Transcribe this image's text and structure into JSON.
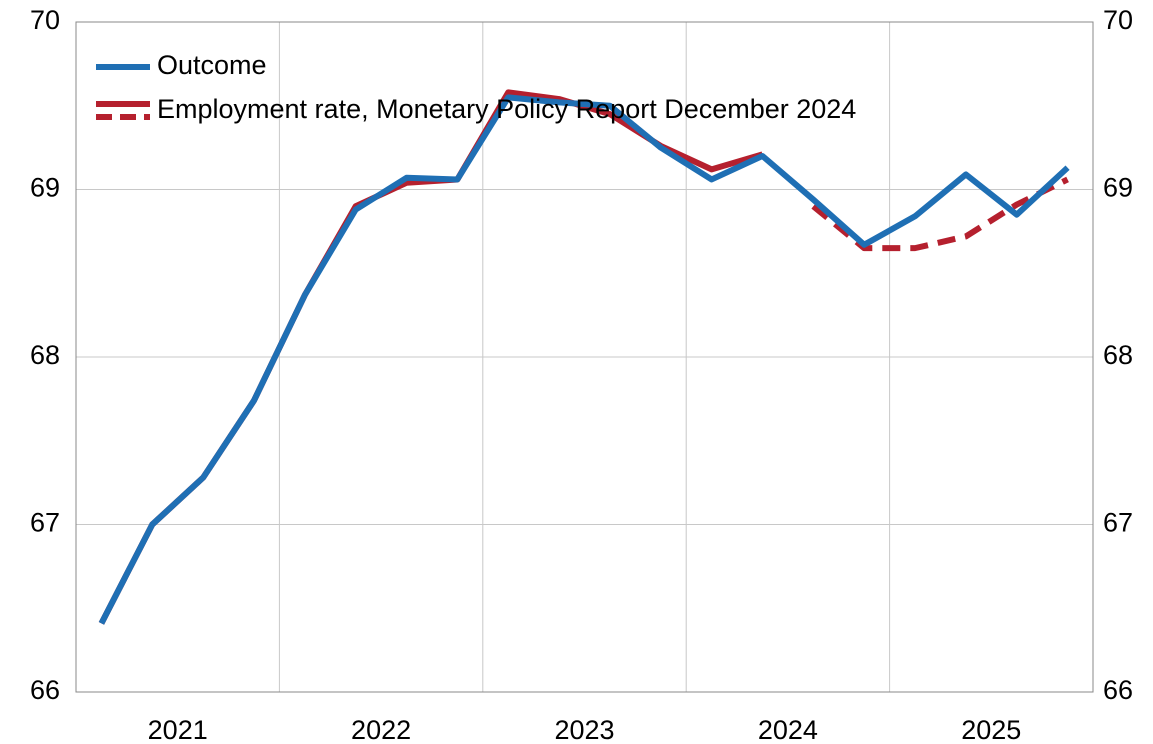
{
  "chart_data": {
    "type": "line",
    "categories": [
      "2021",
      null,
      null,
      null,
      "2022",
      null,
      null,
      null,
      "2023",
      null,
      null,
      null,
      "2024",
      null,
      null,
      null,
      "2025",
      null,
      null,
      null
    ],
    "series": [
      {
        "name": "Outcome",
        "color": "#1f6fb4",
        "values": [
          66.41,
          67.0,
          67.28,
          67.74,
          68.37,
          68.88,
          69.07,
          69.06,
          69.55,
          69.52,
          69.5,
          69.25,
          69.06,
          69.2,
          68.94,
          68.67,
          68.84,
          69.09,
          68.85,
          69.13
        ]
      },
      {
        "name": "Employment rate, Monetary Policy Report December 2024",
        "color": "#b5202e",
        "dashed_from": 13,
        "values": [
          66.41,
          67.0,
          67.28,
          67.74,
          68.37,
          68.9,
          69.04,
          69.06,
          69.58,
          69.54,
          69.45,
          69.26,
          69.12,
          69.21,
          68.9,
          68.65,
          68.65,
          68.72,
          68.91,
          69.06
        ]
      }
    ],
    "ylim": [
      66,
      70
    ],
    "yticks": [
      66,
      67,
      68,
      69,
      70
    ],
    "y2lim": [
      66,
      70
    ],
    "y2ticks": [
      66,
      67,
      68,
      69,
      70
    ],
    "grid": true,
    "legend": "top-left"
  }
}
